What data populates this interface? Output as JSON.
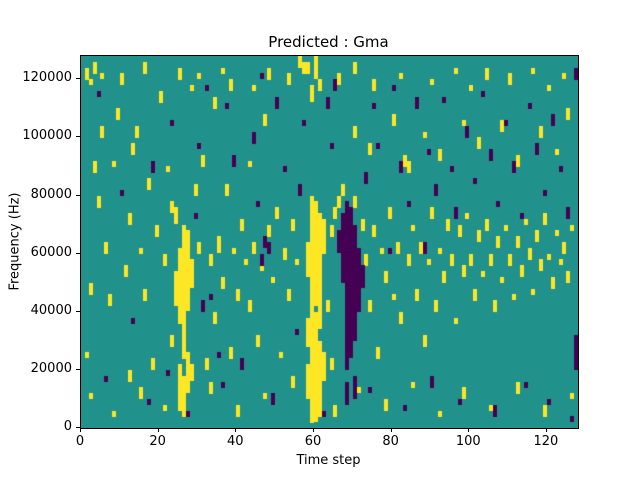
{
  "figure": {
    "title": "Predicted : Gma",
    "xlabel": "Time step",
    "ylabel": "Frequency (Hz)"
  },
  "chart_data": {
    "type": "heatmap",
    "title": "Predicted : Gma",
    "xlabel": "Time step",
    "ylabel": "Frequency (Hz)",
    "x_range": [
      0,
      128
    ],
    "y_range": [
      0,
      128000
    ],
    "x_ticks": [
      0,
      20,
      40,
      60,
      80,
      100,
      120
    ],
    "y_ticks": [
      0,
      20000,
      40000,
      60000,
      80000,
      100000,
      120000
    ],
    "grid_shape": [
      128,
      64
    ],
    "bin_height_hz": 2000,
    "legend": "none",
    "grid": false,
    "colormap": {
      "mid": "#21918c",
      "high": "#fde725",
      "low": "#440154"
    },
    "cells_high": [
      [
        1,
        60,
        61
      ],
      [
        2,
        59,
        59
      ],
      [
        3,
        61,
        62
      ],
      [
        5,
        60,
        60
      ],
      [
        2,
        23,
        24
      ],
      [
        1,
        12,
        12
      ],
      [
        3,
        44,
        45
      ],
      [
        2,
        5,
        5
      ],
      [
        4,
        38,
        39
      ],
      [
        5,
        50,
        51
      ],
      [
        6,
        30,
        31
      ],
      [
        7,
        21,
        22
      ],
      [
        8,
        45,
        45
      ],
      [
        8,
        2,
        2
      ],
      [
        9,
        53,
        54
      ],
      [
        10,
        59,
        60
      ],
      [
        11,
        26,
        27
      ],
      [
        12,
        35,
        36
      ],
      [
        12,
        8,
        9
      ],
      [
        13,
        47,
        48
      ],
      [
        14,
        50,
        51
      ],
      [
        15,
        30,
        30
      ],
      [
        15,
        5,
        6
      ],
      [
        16,
        61,
        62
      ],
      [
        16,
        22,
        23
      ],
      [
        17,
        41,
        42
      ],
      [
        18,
        10,
        11
      ],
      [
        19,
        33,
        34
      ],
      [
        20,
        56,
        57
      ],
      [
        21,
        28,
        29
      ],
      [
        21,
        3,
        3
      ],
      [
        22,
        44,
        44
      ],
      [
        23,
        14,
        15
      ],
      [
        23,
        37,
        38
      ],
      [
        24,
        21,
        26
      ],
      [
        24,
        35,
        37
      ],
      [
        25,
        3,
        10
      ],
      [
        25,
        18,
        30
      ],
      [
        25,
        60,
        61
      ],
      [
        26,
        2,
        8
      ],
      [
        26,
        12,
        34
      ],
      [
        27,
        6,
        12
      ],
      [
        27,
        20,
        33
      ],
      [
        28,
        8,
        10
      ],
      [
        28,
        24,
        28
      ],
      [
        28,
        58,
        58
      ],
      [
        29,
        40,
        41
      ],
      [
        30,
        30,
        31
      ],
      [
        30,
        60,
        60
      ],
      [
        31,
        45,
        46
      ],
      [
        32,
        10,
        11
      ],
      [
        33,
        28,
        29
      ],
      [
        33,
        6,
        7
      ],
      [
        34,
        55,
        56
      ],
      [
        34,
        18,
        19
      ],
      [
        35,
        30,
        32
      ],
      [
        36,
        61,
        61
      ],
      [
        36,
        24,
        25
      ],
      [
        37,
        40,
        41
      ],
      [
        38,
        58,
        59
      ],
      [
        38,
        12,
        13
      ],
      [
        39,
        30,
        30
      ],
      [
        40,
        22,
        23
      ],
      [
        40,
        2,
        3
      ],
      [
        41,
        34,
        35
      ],
      [
        42,
        28,
        28
      ],
      [
        43,
        45,
        45
      ],
      [
        43,
        20,
        21
      ],
      [
        44,
        58,
        58
      ],
      [
        44,
        30,
        31
      ],
      [
        45,
        14,
        15
      ],
      [
        46,
        27,
        29
      ],
      [
        47,
        52,
        53
      ],
      [
        47,
        5,
        5
      ],
      [
        48,
        60,
        61
      ],
      [
        48,
        33,
        34
      ],
      [
        49,
        25,
        25
      ],
      [
        50,
        36,
        37
      ],
      [
        51,
        12,
        12
      ],
      [
        52,
        29,
        30
      ],
      [
        53,
        59,
        60
      ],
      [
        53,
        22,
        23
      ],
      [
        54,
        34,
        35
      ],
      [
        54,
        7,
        8
      ],
      [
        55,
        28,
        28
      ],
      [
        56,
        62,
        63
      ],
      [
        57,
        61,
        62
      ],
      [
        58,
        5,
        10
      ],
      [
        58,
        14,
        18
      ],
      [
        58,
        26,
        31
      ],
      [
        58,
        61,
        62
      ],
      [
        59,
        1,
        39
      ],
      [
        59,
        56,
        58
      ],
      [
        60,
        1,
        19
      ],
      [
        60,
        21,
        38
      ],
      [
        60,
        60,
        63
      ],
      [
        61,
        2,
        14
      ],
      [
        61,
        17,
        36
      ],
      [
        61,
        58,
        59
      ],
      [
        62,
        8,
        12
      ],
      [
        62,
        30,
        35
      ],
      [
        63,
        20,
        21
      ],
      [
        64,
        33,
        34
      ],
      [
        64,
        10,
        11
      ],
      [
        65,
        36,
        37
      ],
      [
        65,
        2,
        3
      ],
      [
        66,
        38,
        39
      ],
      [
        66,
        59,
        60
      ],
      [
        67,
        40,
        41
      ],
      [
        70,
        38,
        39
      ],
      [
        70,
        50,
        51
      ],
      [
        70,
        61,
        62
      ],
      [
        71,
        6,
        6
      ],
      [
        72,
        34,
        35
      ],
      [
        73,
        28,
        29
      ],
      [
        74,
        20,
        21
      ],
      [
        74,
        47,
        48
      ],
      [
        75,
        33,
        34
      ],
      [
        75,
        58,
        59
      ],
      [
        76,
        12,
        13
      ],
      [
        77,
        30,
        30
      ],
      [
        78,
        25,
        26
      ],
      [
        78,
        3,
        4
      ],
      [
        79,
        36,
        37
      ],
      [
        80,
        22,
        22
      ],
      [
        80,
        52,
        53
      ],
      [
        81,
        30,
        31
      ],
      [
        82,
        18,
        19
      ],
      [
        82,
        60,
        60
      ],
      [
        83,
        45,
        46
      ],
      [
        84,
        28,
        29
      ],
      [
        84,
        44,
        45
      ],
      [
        85,
        34,
        34
      ],
      [
        85,
        7,
        7
      ],
      [
        86,
        22,
        23
      ],
      [
        87,
        30,
        31
      ],
      [
        88,
        14,
        15
      ],
      [
        88,
        50,
        50
      ],
      [
        89,
        28,
        28
      ],
      [
        90,
        36,
        37
      ],
      [
        90,
        59,
        59
      ],
      [
        91,
        20,
        21
      ],
      [
        92,
        30,
        30
      ],
      [
        92,
        46,
        47
      ],
      [
        92,
        2,
        2
      ],
      [
        93,
        25,
        26
      ],
      [
        94,
        34,
        35
      ],
      [
        95,
        28,
        29
      ],
      [
        96,
        18,
        18
      ],
      [
        96,
        61,
        61
      ],
      [
        97,
        33,
        34
      ],
      [
        98,
        26,
        27
      ],
      [
        98,
        52,
        52
      ],
      [
        98,
        5,
        6
      ],
      [
        99,
        36,
        36
      ],
      [
        100,
        28,
        29
      ],
      [
        100,
        58,
        58
      ],
      [
        101,
        22,
        23
      ],
      [
        102,
        32,
        33
      ],
      [
        102,
        48,
        49
      ],
      [
        103,
        26,
        26
      ],
      [
        104,
        34,
        35
      ],
      [
        104,
        60,
        61
      ],
      [
        105,
        28,
        29
      ],
      [
        105,
        3,
        3
      ],
      [
        106,
        20,
        21
      ],
      [
        107,
        31,
        32
      ],
      [
        108,
        25,
        25
      ],
      [
        108,
        51,
        52
      ],
      [
        109,
        34,
        34
      ],
      [
        110,
        28,
        29
      ],
      [
        110,
        59,
        60
      ],
      [
        111,
        22,
        22
      ],
      [
        112,
        31,
        32
      ],
      [
        112,
        45,
        46
      ],
      [
        112,
        6,
        7
      ],
      [
        113,
        26,
        27
      ],
      [
        114,
        35,
        35
      ],
      [
        115,
        29,
        30
      ],
      [
        116,
        23,
        23
      ],
      [
        116,
        61,
        61
      ],
      [
        117,
        32,
        33
      ],
      [
        118,
        27,
        28
      ],
      [
        118,
        50,
        51
      ],
      [
        119,
        35,
        36
      ],
      [
        119,
        2,
        3
      ],
      [
        120,
        29,
        29
      ],
      [
        120,
        58,
        58
      ],
      [
        121,
        24,
        25
      ],
      [
        122,
        33,
        33
      ],
      [
        122,
        47,
        47
      ],
      [
        123,
        28,
        28
      ],
      [
        124,
        30,
        31
      ],
      [
        124,
        60,
        60
      ],
      [
        125,
        25,
        26
      ],
      [
        125,
        53,
        54
      ],
      [
        126,
        34,
        34
      ],
      [
        126,
        5,
        5
      ]
    ],
    "cells_low": [
      [
        4,
        57,
        57
      ],
      [
        6,
        8,
        8
      ],
      [
        10,
        40,
        40
      ],
      [
        13,
        18,
        18
      ],
      [
        17,
        4,
        4
      ],
      [
        18,
        44,
        45
      ],
      [
        22,
        9,
        9
      ],
      [
        23,
        52,
        52
      ],
      [
        27,
        2,
        2
      ],
      [
        29,
        36,
        36
      ],
      [
        30,
        48,
        48
      ],
      [
        31,
        20,
        21
      ],
      [
        32,
        58,
        58
      ],
      [
        33,
        22,
        22
      ],
      [
        35,
        12,
        12
      ],
      [
        36,
        7,
        7
      ],
      [
        37,
        55,
        55
      ],
      [
        39,
        45,
        46
      ],
      [
        41,
        10,
        11
      ],
      [
        44,
        49,
        50
      ],
      [
        45,
        38,
        38
      ],
      [
        46,
        28,
        29
      ],
      [
        46,
        60,
        60
      ],
      [
        47,
        31,
        32
      ],
      [
        48,
        30,
        31
      ],
      [
        49,
        4,
        5
      ],
      [
        50,
        55,
        56
      ],
      [
        52,
        44,
        44
      ],
      [
        55,
        16,
        16
      ],
      [
        56,
        40,
        41
      ],
      [
        57,
        52,
        52
      ],
      [
        62,
        2,
        2
      ],
      [
        63,
        55,
        56
      ],
      [
        64,
        48,
        48
      ],
      [
        65,
        58,
        59
      ],
      [
        66,
        30,
        33
      ],
      [
        67,
        25,
        36
      ],
      [
        68,
        10,
        38
      ],
      [
        68,
        4,
        7
      ],
      [
        69,
        12,
        37
      ],
      [
        70,
        15,
        34
      ],
      [
        70,
        5,
        8
      ],
      [
        71,
        20,
        30
      ],
      [
        72,
        24,
        27
      ],
      [
        73,
        42,
        43
      ],
      [
        74,
        6,
        6
      ],
      [
        75,
        55,
        55
      ],
      [
        76,
        48,
        48
      ],
      [
        79,
        30,
        30
      ],
      [
        80,
        58,
        58
      ],
      [
        82,
        44,
        45
      ],
      [
        83,
        3,
        3
      ],
      [
        84,
        38,
        38
      ],
      [
        86,
        55,
        56
      ],
      [
        88,
        30,
        31
      ],
      [
        89,
        47,
        47
      ],
      [
        90,
        7,
        8
      ],
      [
        91,
        40,
        41
      ],
      [
        93,
        56,
        56
      ],
      [
        95,
        44,
        44
      ],
      [
        96,
        36,
        37
      ],
      [
        97,
        4,
        4
      ],
      [
        99,
        50,
        51
      ],
      [
        101,
        42,
        42
      ],
      [
        103,
        57,
        57
      ],
      [
        105,
        46,
        47
      ],
      [
        106,
        2,
        3
      ],
      [
        107,
        38,
        38
      ],
      [
        109,
        52,
        52
      ],
      [
        111,
        44,
        45
      ],
      [
        113,
        36,
        36
      ],
      [
        114,
        7,
        7
      ],
      [
        115,
        55,
        55
      ],
      [
        117,
        47,
        48
      ],
      [
        119,
        40,
        40
      ],
      [
        120,
        4,
        4
      ],
      [
        121,
        52,
        53
      ],
      [
        123,
        44,
        44
      ],
      [
        125,
        36,
        37
      ],
      [
        126,
        1,
        1
      ],
      [
        127,
        10,
        15
      ],
      [
        127,
        60,
        61
      ]
    ]
  }
}
